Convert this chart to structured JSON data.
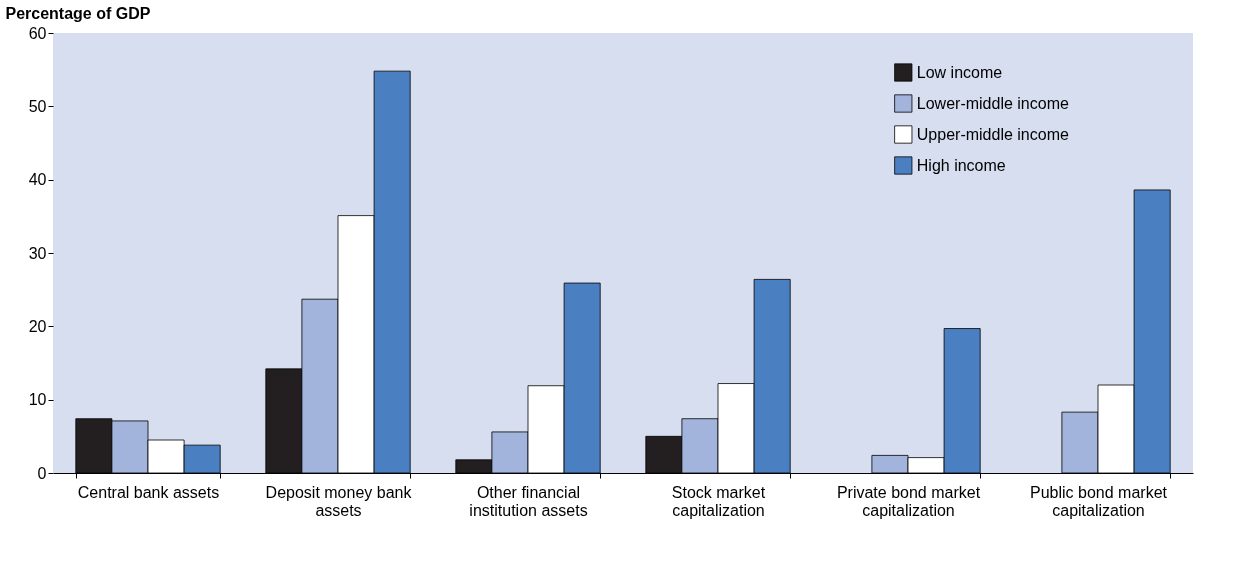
{
  "chart_data": {
    "type": "bar",
    "ylabel": "Percentage of GDP",
    "categories": [
      "Central bank assets",
      "Deposit money bank assets",
      "Other financial institution assets",
      "Stock market capitalization",
      "Private bond market capitalization",
      "Public bond market capitalization"
    ],
    "series": [
      {
        "name": "Low income",
        "color": "#231f20",
        "values": [
          7.4,
          14.2,
          1.8,
          5.0,
          null,
          null
        ]
      },
      {
        "name": "Lower-middle income",
        "color": "#a3b4dc",
        "values": [
          7.1,
          23.7,
          5.6,
          7.4,
          2.4,
          8.3
        ]
      },
      {
        "name": "Upper-middle income",
        "color": "#ffffff",
        "values": [
          4.5,
          35.1,
          11.9,
          12.2,
          2.1,
          12.0
        ]
      },
      {
        "name": "High income",
        "color": "#4a80c2",
        "values": [
          3.8,
          54.8,
          25.9,
          26.4,
          19.7,
          38.6
        ]
      }
    ],
    "ylim": [
      0,
      60
    ],
    "yticks": [
      0,
      10,
      20,
      30,
      40,
      50,
      60
    ],
    "grid": false,
    "legend": "top right"
  }
}
